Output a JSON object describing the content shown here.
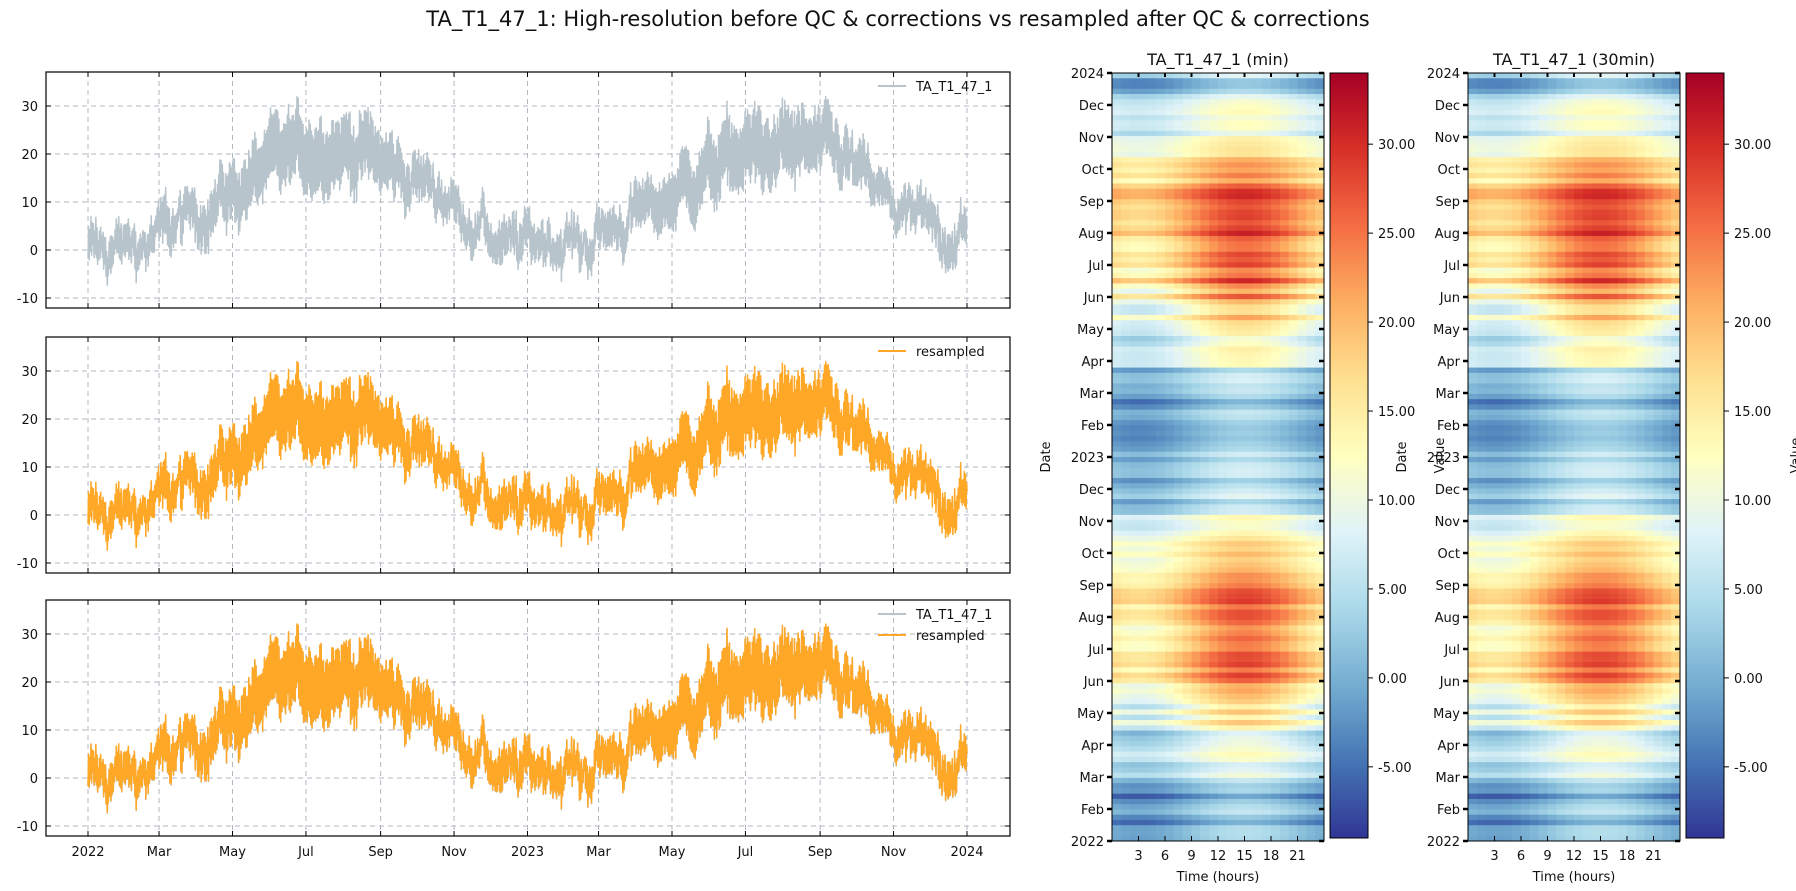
{
  "figure": {
    "title": "TA_T1_47_1: High-resolution before QC & corrections vs resampled after QC & corrections"
  },
  "colors": {
    "raw": "#b8c4cc",
    "resampled": "#ffa726",
    "grid": "#b0b8c0",
    "colormap": "RdYlBu_r"
  },
  "chart_data": [
    {
      "type": "line",
      "panel": "top",
      "series": [
        {
          "name": "TA_T1_47_1",
          "color": "raw"
        }
      ],
      "x_range": [
        "2022-01-01",
        "2024-01-01"
      ],
      "x_tick_labels": [
        "2022",
        "Mar",
        "May",
        "Jul",
        "Sep",
        "Nov",
        "2023",
        "Mar",
        "May",
        "Jul",
        "Sep",
        "Nov",
        "2024"
      ],
      "ylim": [
        -10,
        35
      ],
      "y_ticks": [
        -10,
        0,
        10,
        20,
        30
      ],
      "grid": true,
      "legend": "top-right"
    },
    {
      "type": "line",
      "panel": "middle",
      "series": [
        {
          "name": "resampled",
          "color": "resampled"
        }
      ],
      "x_range": [
        "2022-01-01",
        "2024-01-01"
      ],
      "ylim": [
        -10,
        35
      ],
      "y_ticks": [
        -10,
        0,
        10,
        20,
        30
      ],
      "grid": true,
      "legend": "top-right"
    },
    {
      "type": "line",
      "panel": "bottom",
      "series": [
        {
          "name": "TA_T1_47_1",
          "color": "raw"
        },
        {
          "name": "resampled",
          "color": "resampled"
        }
      ],
      "x_range": [
        "2022-01-01",
        "2024-01-01"
      ],
      "x_tick_labels": [
        "2022",
        "Mar",
        "May",
        "Jul",
        "Sep",
        "Nov",
        "2023",
        "Mar",
        "May",
        "Jul",
        "Sep",
        "Nov",
        "2024"
      ],
      "ylim": [
        -10,
        35
      ],
      "y_ticks": [
        -10,
        0,
        10,
        20,
        30
      ],
      "grid": true,
      "legend": "top-right",
      "approx_daily_mean_by_month": {
        "months": [
          "Jan",
          "Feb",
          "Mar",
          "Apr",
          "May",
          "Jun",
          "Jul",
          "Aug",
          "Sep",
          "Oct",
          "Nov",
          "Dec"
        ],
        "2022": [
          0,
          1,
          6,
          10,
          15,
          20,
          22,
          21,
          16,
          13,
          6,
          0
        ],
        "2023": [
          3,
          1,
          6,
          9,
          15,
          19,
          21,
          21,
          20,
          12,
          6,
          3
        ]
      }
    },
    {
      "type": "heatmap",
      "title": "TA_T1_47_1 (min)",
      "xlabel": "Time (hours)",
      "ylabel": "Date",
      "x_ticks": [
        3,
        6,
        9,
        12,
        15,
        18,
        21
      ],
      "y_tick_labels": [
        "2024",
        "Dec",
        "Nov",
        "Oct",
        "Sep",
        "Aug",
        "Jul",
        "Jun",
        "May",
        "Apr",
        "Mar",
        "Feb",
        "2023",
        "Dec",
        "Nov",
        "Oct",
        "Sep",
        "Aug",
        "Jul",
        "Jun",
        "May",
        "Apr",
        "Mar",
        "Feb",
        "2022"
      ],
      "colorbar": {
        "label": "Value",
        "range": [
          -9,
          34
        ],
        "ticks": [
          -5,
          0,
          5,
          10,
          15,
          20,
          25,
          30
        ],
        "tick_labels": [
          "-5.00",
          "0.00",
          "5.00",
          "10.00",
          "15.00",
          "20.00",
          "25.00",
          "30.00"
        ]
      }
    },
    {
      "type": "heatmap",
      "title": "TA_T1_47_1 (30min)",
      "xlabel": "Time (hours)",
      "ylabel": "Date",
      "x_ticks": [
        3,
        6,
        9,
        12,
        15,
        18,
        21
      ],
      "y_tick_labels": [
        "2024",
        "Dec",
        "Nov",
        "Oct",
        "Sep",
        "Aug",
        "Jul",
        "Jun",
        "May",
        "Apr",
        "Mar",
        "Feb",
        "2023",
        "Dec",
        "Nov",
        "Oct",
        "Sep",
        "Aug",
        "Jul",
        "Jun",
        "May",
        "Apr",
        "Mar",
        "Feb",
        "2022"
      ],
      "colorbar": {
        "label": "Value",
        "range": [
          -9,
          34
        ],
        "ticks": [
          -5,
          0,
          5,
          10,
          15,
          20,
          25,
          30
        ],
        "tick_labels": [
          "-5.00",
          "0.00",
          "5.00",
          "10.00",
          "15.00",
          "20.00",
          "25.00",
          "30.00"
        ]
      }
    }
  ]
}
